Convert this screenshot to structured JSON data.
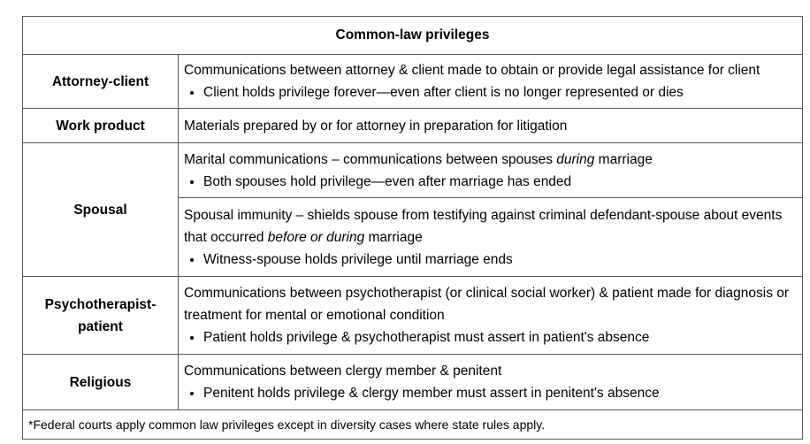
{
  "table": {
    "title": "Common-law privileges",
    "rows": [
      {
        "label": "Attorney-client",
        "desc": "Communications between attorney & client made to obtain or provide legal assistance for client",
        "bullet": "Client holds privilege forever—even after client is no longer represented or dies"
      },
      {
        "label": "Work product",
        "desc": "Materials prepared by or for attorney in preparation for litigation"
      },
      {
        "label": "Spousal",
        "marital": {
          "pre": "Marital communications – communications between spouses ",
          "em": "during",
          "post": " marriage",
          "bullet": "Both spouses hold privilege—even after marriage has ended"
        },
        "immunity": {
          "pre": "Spousal immunity – shields spouse from testifying against criminal defendant-spouse about events that occurred ",
          "em": "before or during",
          "post": " marriage",
          "bullet": "Witness-spouse holds privilege until marriage ends"
        }
      },
      {
        "label": "Psychotherapist-patient",
        "desc": "Communications between psychotherapist (or clinical social worker) & patient made for diagnosis or treatment for mental or emotional condition",
        "bullet": "Patient holds privilege & psychotherapist must assert in patient's absence"
      },
      {
        "label": "Religious",
        "desc": "Communications between clergy member & penitent",
        "bullet": "Penitent holds privilege & clergy member must assert in penitent's absence"
      }
    ],
    "footnote": "*Federal courts apply common law privileges except in diversity cases where state rules apply."
  }
}
